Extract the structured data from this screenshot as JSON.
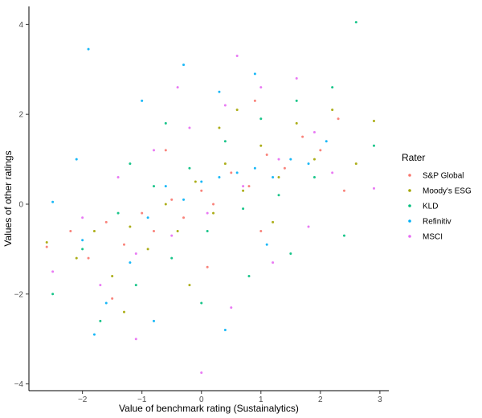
{
  "chart_data": {
    "type": "scatter",
    "xlabel": "Value of benchmark rating (Sustainalytics)",
    "ylabel": "Values of other ratings",
    "xlim": [
      -2.9,
      3.15
    ],
    "ylim": [
      -4.15,
      4.4
    ],
    "x_ticks": [
      -2,
      -1,
      0,
      1,
      2,
      3
    ],
    "y_ticks": [
      -4,
      -2,
      0,
      2,
      4
    ],
    "grid": false,
    "legend": {
      "title": "Rater",
      "placement": "right"
    },
    "series": [
      {
        "name": "S&P Global",
        "color": "#F8766D",
        "points": [
          [
            -2.6,
            -0.95
          ],
          [
            -2.2,
            -0.6
          ],
          [
            -1.9,
            -1.2
          ],
          [
            -1.6,
            -0.4
          ],
          [
            -1.3,
            -0.9
          ],
          [
            -1.0,
            -0.2
          ],
          [
            -0.8,
            -0.6
          ],
          [
            -0.5,
            0.1
          ],
          [
            -0.3,
            -0.3
          ],
          [
            0.0,
            0.3
          ],
          [
            0.2,
            0.0
          ],
          [
            0.5,
            0.7
          ],
          [
            0.8,
            0.4
          ],
          [
            1.1,
            1.1
          ],
          [
            1.4,
            0.8
          ],
          [
            1.7,
            1.5
          ],
          [
            2.0,
            1.2
          ],
          [
            2.3,
            1.9
          ],
          [
            -1.5,
            -2.1
          ],
          [
            0.1,
            -1.4
          ],
          [
            1.0,
            -0.6
          ],
          [
            2.4,
            0.3
          ],
          [
            -0.6,
            1.2
          ],
          [
            0.9,
            2.3
          ]
        ]
      },
      {
        "name": "Moody's ESG",
        "color": "#A3A500",
        "points": [
          [
            -2.6,
            -0.85
          ],
          [
            -2.1,
            -1.2
          ],
          [
            -1.8,
            -0.6
          ],
          [
            -1.5,
            -1.6
          ],
          [
            -1.2,
            -0.5
          ],
          [
            -0.9,
            -1.0
          ],
          [
            -0.6,
            0.0
          ],
          [
            -0.4,
            -0.6
          ],
          [
            -0.1,
            0.5
          ],
          [
            0.2,
            -0.2
          ],
          [
            0.4,
            0.9
          ],
          [
            0.7,
            0.3
          ],
          [
            1.0,
            1.3
          ],
          [
            1.3,
            0.6
          ],
          [
            1.6,
            1.8
          ],
          [
            1.9,
            1.0
          ],
          [
            2.2,
            2.1
          ],
          [
            2.9,
            1.85
          ],
          [
            -1.3,
            -2.4
          ],
          [
            0.3,
            1.7
          ],
          [
            1.2,
            -0.4
          ],
          [
            2.6,
            0.9
          ],
          [
            -0.2,
            -1.8
          ],
          [
            0.6,
            2.1
          ]
        ]
      },
      {
        "name": "KLD",
        "color": "#00BF7D",
        "points": [
          [
            -2.5,
            -2.0
          ],
          [
            -2.0,
            -1.0
          ],
          [
            -1.7,
            -2.6
          ],
          [
            -1.4,
            -0.2
          ],
          [
            -1.1,
            -1.8
          ],
          [
            -0.8,
            0.4
          ],
          [
            -0.5,
            -1.2
          ],
          [
            -0.2,
            0.8
          ],
          [
            0.1,
            -0.6
          ],
          [
            0.4,
            1.4
          ],
          [
            0.7,
            -0.1
          ],
          [
            1.0,
            1.9
          ],
          [
            1.3,
            0.2
          ],
          [
            1.6,
            2.3
          ],
          [
            1.9,
            0.6
          ],
          [
            2.2,
            2.6
          ],
          [
            2.6,
            4.05
          ],
          [
            2.9,
            1.3
          ],
          [
            -1.2,
            0.9
          ],
          [
            0.0,
            -2.2
          ],
          [
            0.8,
            -1.6
          ],
          [
            2.4,
            -0.7
          ],
          [
            -0.6,
            1.8
          ],
          [
            1.5,
            -1.1
          ]
        ]
      },
      {
        "name": "Refinitiv",
        "color": "#00B0F6",
        "points": [
          [
            -1.9,
            3.45
          ],
          [
            -1.0,
            2.3
          ],
          [
            -0.3,
            3.1
          ],
          [
            0.3,
            2.5
          ],
          [
            0.9,
            2.9
          ],
          [
            -2.5,
            0.05
          ],
          [
            -2.0,
            -0.8
          ],
          [
            -1.6,
            -2.2
          ],
          [
            -1.2,
            -1.3
          ],
          [
            -0.9,
            -0.3
          ],
          [
            -0.6,
            0.4
          ],
          [
            -0.3,
            0.1
          ],
          [
            0.0,
            0.5
          ],
          [
            0.3,
            0.6
          ],
          [
            0.6,
            0.7
          ],
          [
            0.9,
            0.8
          ],
          [
            1.2,
            0.6
          ],
          [
            1.5,
            1.0
          ],
          [
            1.8,
            0.9
          ],
          [
            2.1,
            1.4
          ],
          [
            -1.8,
            -2.9
          ],
          [
            -0.8,
            -2.6
          ],
          [
            0.4,
            -2.8
          ],
          [
            -2.1,
            1.0
          ],
          [
            1.1,
            -0.9
          ]
        ]
      },
      {
        "name": "MSCI",
        "color": "#E76BF3",
        "points": [
          [
            -2.5,
            -1.5
          ],
          [
            -2.0,
            -0.3
          ],
          [
            -1.7,
            -1.8
          ],
          [
            -1.4,
            0.6
          ],
          [
            -1.1,
            -1.1
          ],
          [
            -0.8,
            1.2
          ],
          [
            -0.5,
            -0.7
          ],
          [
            -0.2,
            1.7
          ],
          [
            0.1,
            -0.2
          ],
          [
            0.4,
            2.2
          ],
          [
            0.7,
            0.4
          ],
          [
            1.0,
            2.6
          ],
          [
            1.3,
            1.0
          ],
          [
            1.6,
            2.8
          ],
          [
            1.9,
            1.6
          ],
          [
            2.2,
            0.7
          ],
          [
            0.6,
            3.3
          ],
          [
            0.0,
            -3.75
          ],
          [
            2.9,
            0.35
          ],
          [
            -1.1,
            -3.0
          ],
          [
            0.5,
            -2.3
          ],
          [
            1.8,
            -0.5
          ],
          [
            -0.4,
            2.6
          ],
          [
            1.2,
            -1.3
          ]
        ]
      }
    ]
  }
}
